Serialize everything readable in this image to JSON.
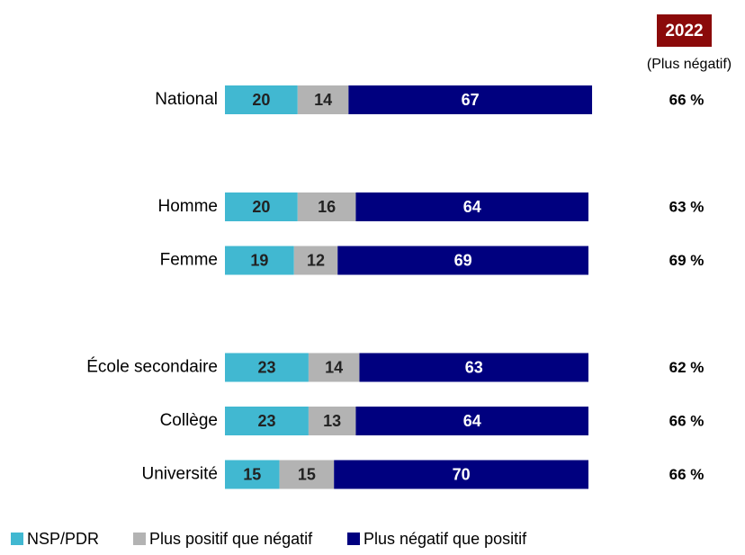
{
  "chart_data": {
    "type": "stacked_bar_horizontal",
    "categories": [
      "National",
      null,
      "Homme",
      "Femme",
      null,
      "École secondaire",
      "Collège",
      "Université"
    ],
    "xlim": [
      0,
      100
    ],
    "series": [
      {
        "name": "NSP/PDR",
        "color": "#41b8d1",
        "values": [
          20,
          null,
          20,
          19,
          null,
          23,
          23,
          15
        ]
      },
      {
        "name": "Plus positif que négatif",
        "color": "#b3b3b3",
        "values": [
          14,
          null,
          16,
          12,
          null,
          14,
          13,
          15
        ]
      },
      {
        "name": "Plus négatif que positif",
        "color": "#00007f",
        "values": [
          67,
          null,
          64,
          69,
          null,
          63,
          64,
          70
        ]
      }
    ],
    "comparison": {
      "title": "2022",
      "subtitle": "(Plus négatif)",
      "color": "#8b0a0a",
      "values": [
        66,
        null,
        63,
        69,
        null,
        62,
        66,
        66
      ],
      "value_labels": [
        "66 %",
        null,
        "63 %",
        "69 %",
        null,
        "62 %",
        "66 %",
        "66 %"
      ]
    }
  }
}
